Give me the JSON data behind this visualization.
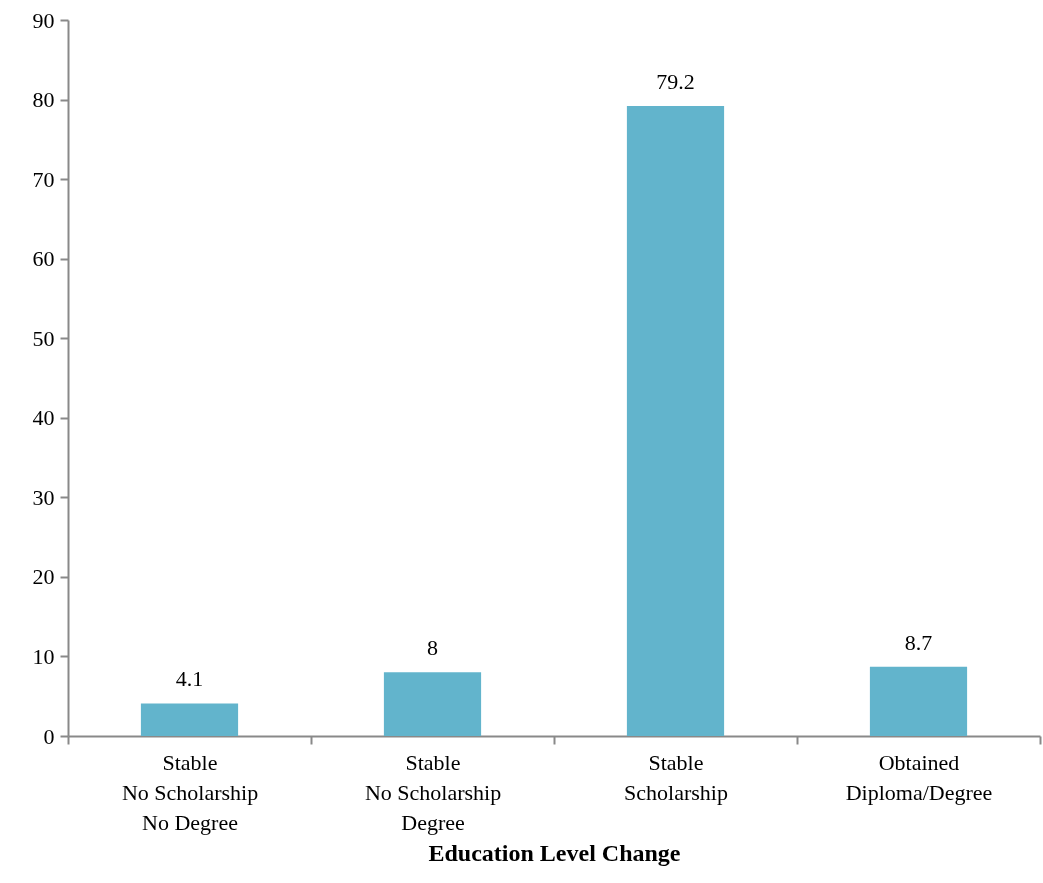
{
  "chart_data": {
    "type": "bar",
    "xlabel": "Education Level Change",
    "categories": [
      "Stable\nNo Scholarship\nNo Degree",
      "Stable\nNo Scholarship\nDegree",
      "Stable\nScholarship",
      "Obtained\nDiploma/Degree"
    ],
    "values": [
      4.1,
      8,
      79.2,
      8.7
    ],
    "color": "#62b4cc",
    "ylim": [
      0,
      90
    ],
    "yticks": [
      0,
      10,
      20,
      30,
      40,
      50,
      60,
      70,
      80,
      90
    ],
    "data_labels": true
  }
}
